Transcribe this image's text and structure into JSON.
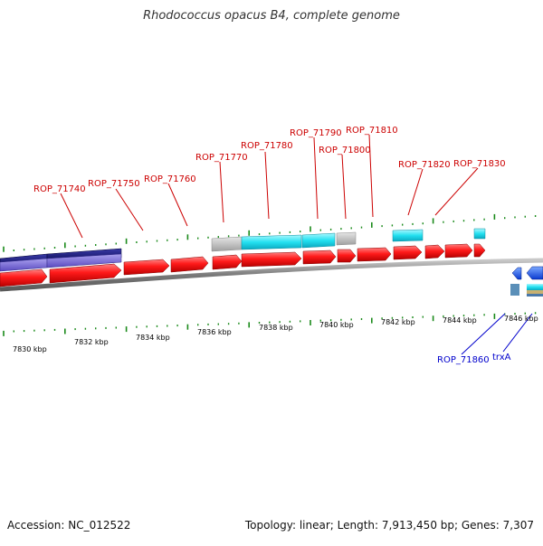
{
  "title": "Rhodococcus opacus B4, complete genome",
  "accession_text": "Accession: NC_012522",
  "summary_text": "Topology: linear; Length: 7,913,450 bp; Genes: 7,307",
  "colors": {
    "forward_label": "#cc0000",
    "reverse_label": "#0000cc",
    "cds": "#ff1a1a",
    "rna_cyan": "#22e0f0",
    "gray_feature": "#bbbbbb",
    "navy_feature": "#0a0a6e",
    "lavender_feature": "#6a5acd",
    "tick": "#1a8a1a",
    "backbone": "#888888"
  },
  "axis_labels": [
    {
      "id": "7830",
      "text": "7830 kbp"
    },
    {
      "id": "7832",
      "text": "7832 kbp"
    },
    {
      "id": "7834",
      "text": "7834 kbp"
    },
    {
      "id": "7836",
      "text": "7836 kbp"
    },
    {
      "id": "7838",
      "text": "7838 kbp"
    },
    {
      "id": "7840",
      "text": "7840 kbp"
    },
    {
      "id": "7842",
      "text": "7842 kbp"
    },
    {
      "id": "7844",
      "text": "7844 kbp"
    },
    {
      "id": "7846",
      "text": "7846 kbp"
    }
  ],
  "gene_labels": [
    {
      "id": "rop-71740",
      "text": "ROP_71740",
      "strand": "forward"
    },
    {
      "id": "rop-71750",
      "text": "ROP_71750",
      "strand": "forward"
    },
    {
      "id": "rop-71760",
      "text": "ROP_71760",
      "strand": "forward"
    },
    {
      "id": "rop-71770",
      "text": "ROP_71770",
      "strand": "forward"
    },
    {
      "id": "rop-71780",
      "text": "ROP_71780",
      "strand": "forward"
    },
    {
      "id": "rop-71790",
      "text": "ROP_71790",
      "strand": "forward"
    },
    {
      "id": "rop-71800",
      "text": "ROP_71800",
      "strand": "forward"
    },
    {
      "id": "rop-71810",
      "text": "ROP_71810",
      "strand": "forward"
    },
    {
      "id": "rop-71820",
      "text": "ROP_71820",
      "strand": "forward"
    },
    {
      "id": "rop-71830",
      "text": "ROP_71830",
      "strand": "forward"
    },
    {
      "id": "rop-71860",
      "text": "ROP_71860",
      "strand": "reverse"
    },
    {
      "id": "trxa",
      "text": "trxA",
      "strand": "reverse"
    }
  ]
}
